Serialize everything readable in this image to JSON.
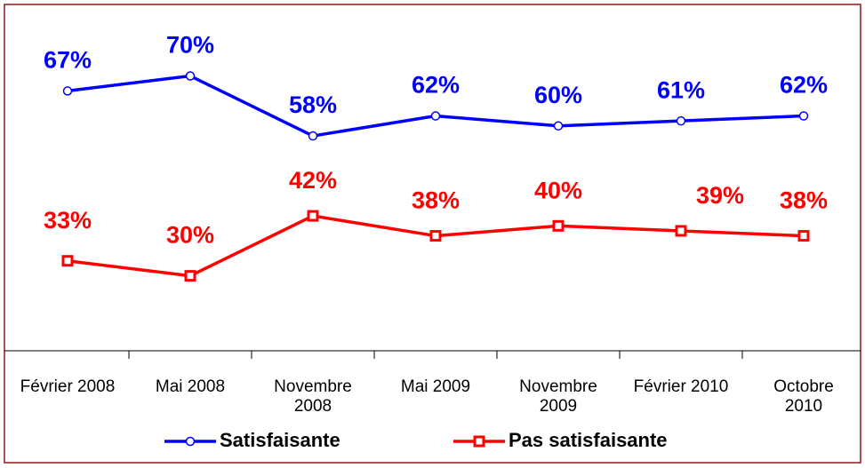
{
  "chart_data": {
    "type": "line",
    "categories": [
      "Février 2008",
      "Mai 2008",
      "Novembre 2008",
      "Mai 2009",
      "Novembre 2009",
      "Février 2010",
      "Octobre 2010"
    ],
    "series": [
      {
        "name": "Satisfaisante",
        "color": "#0000ff",
        "values": [
          67,
          70,
          58,
          62,
          60,
          61,
          62
        ],
        "value_labels": [
          "67%",
          "70%",
          "58%",
          "62%",
          "60%",
          "61%",
          "62%"
        ]
      },
      {
        "name": "Pas satisfaisante",
        "color": "#ff0000",
        "values": [
          33,
          30,
          42,
          38,
          40,
          39,
          38
        ],
        "value_labels": [
          "33%",
          "30%",
          "42%",
          "38%",
          "40%",
          "39%",
          "38%"
        ]
      }
    ],
    "ylim": [
      15,
      82
    ]
  }
}
